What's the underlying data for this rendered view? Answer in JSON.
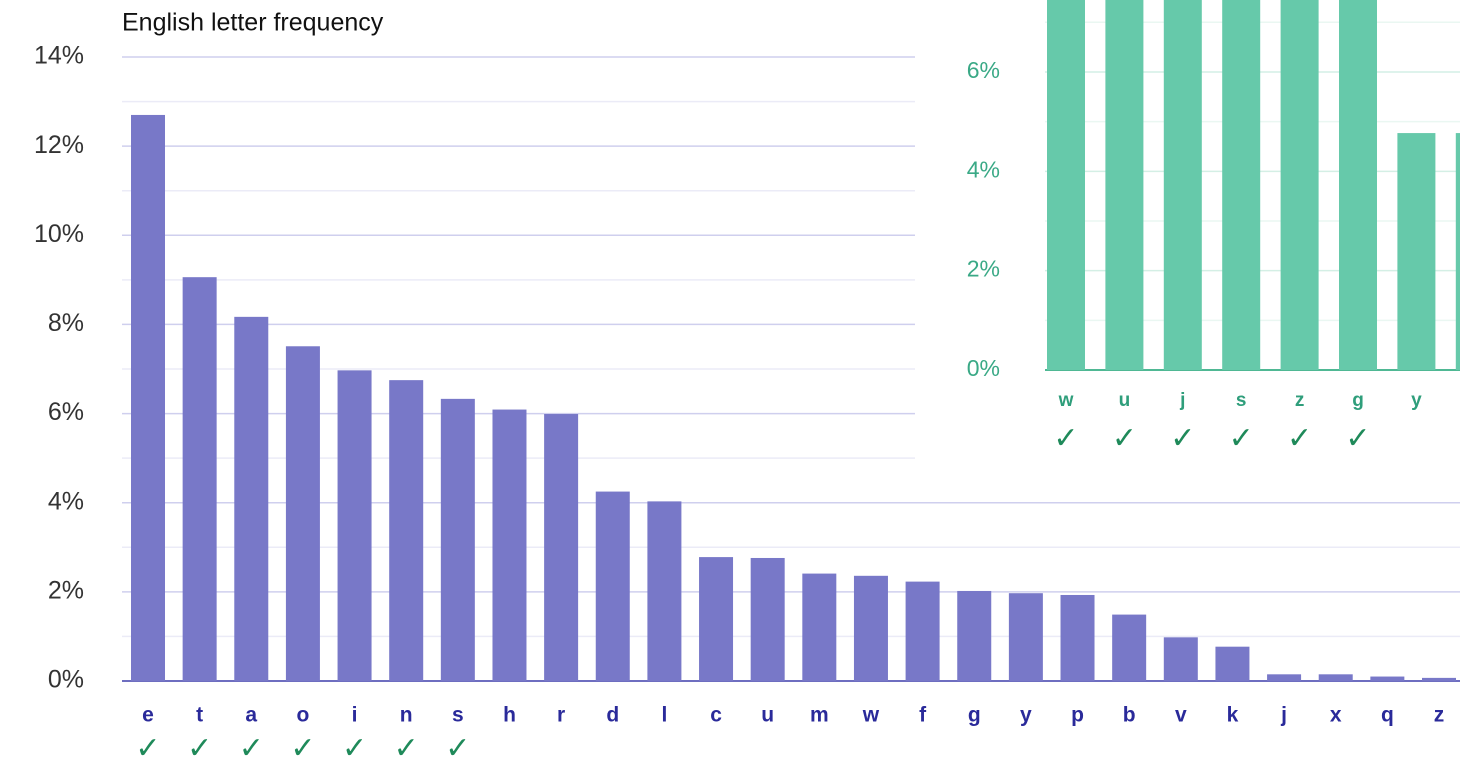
{
  "chart_data": [
    {
      "type": "bar",
      "title": "English letter frequency",
      "categories": [
        "e",
        "t",
        "a",
        "o",
        "i",
        "n",
        "s",
        "h",
        "r",
        "d",
        "l",
        "c",
        "u",
        "m",
        "w",
        "f",
        "g",
        "y",
        "p",
        "b",
        "v",
        "k",
        "j",
        "x",
        "q",
        "z"
      ],
      "values": [
        12.7,
        9.06,
        8.17,
        7.51,
        6.97,
        6.75,
        6.33,
        6.09,
        5.99,
        4.25,
        4.03,
        2.78,
        2.76,
        2.41,
        2.36,
        2.23,
        2.02,
        1.97,
        1.93,
        1.49,
        0.98,
        0.77,
        0.15,
        0.15,
        0.1,
        0.07
      ],
      "color": "#7878c8",
      "ylim": [
        0,
        14
      ],
      "yticks": [
        {
          "value": 0,
          "label": "0%"
        },
        {
          "value": 2,
          "label": "2%"
        },
        {
          "value": 4,
          "label": "4%"
        },
        {
          "value": 6,
          "label": "6%"
        },
        {
          "value": 8,
          "label": "8%"
        },
        {
          "value": 10,
          "label": "10%"
        },
        {
          "value": 12,
          "label": "12%"
        },
        {
          "value": 14,
          "label": "14%"
        }
      ],
      "minor_yticks": [
        1,
        3,
        5,
        7,
        9,
        11,
        13
      ],
      "grid": true,
      "annotations": [
        {
          "category": "e",
          "text": "✓"
        },
        {
          "category": "t",
          "text": "✓"
        },
        {
          "category": "a",
          "text": "✓"
        },
        {
          "category": "o",
          "text": "✓"
        },
        {
          "category": "i",
          "text": "✓"
        },
        {
          "category": "n",
          "text": "✓"
        },
        {
          "category": "s",
          "text": "✓"
        }
      ]
    },
    {
      "type": "bar",
      "categories": [
        "w",
        "u",
        "j",
        "s",
        "z",
        "g",
        "y",
        null
      ],
      "values": [
        7.5,
        7.5,
        7.5,
        7.5,
        7.5,
        7.5,
        4.77,
        4.77
      ],
      "color": "#66c9aa",
      "ylim": [
        0,
        7.5
      ],
      "yticks": [
        {
          "value": 0,
          "label": "0%"
        },
        {
          "value": 2,
          "label": "2%"
        },
        {
          "value": 4,
          "label": "4%"
        },
        {
          "value": 6,
          "label": "6%"
        }
      ],
      "minor_yticks": [
        1,
        3,
        5,
        7
      ],
      "grid": true,
      "annotations": [
        {
          "category": "w",
          "text": "✓"
        },
        {
          "category": "u",
          "text": "✓"
        },
        {
          "category": "j",
          "text": "✓"
        },
        {
          "category": "s",
          "text": "✓"
        },
        {
          "category": "z",
          "text": "✓"
        },
        {
          "category": "g",
          "text": "✓"
        }
      ]
    }
  ]
}
